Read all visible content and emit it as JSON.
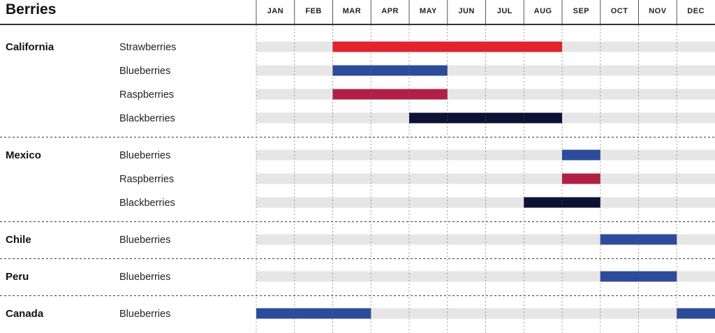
{
  "chart_data": {
    "type": "gantt",
    "title": "Berries",
    "months": [
      "JAN",
      "FEB",
      "MAR",
      "APR",
      "MAY",
      "JUN",
      "JUL",
      "AUG",
      "SEP",
      "OCT",
      "NOV",
      "DEC"
    ],
    "colors": {
      "Strawberries": "#e3232b",
      "Blueberries": "#2d4b9b",
      "Raspberries": "#b21f45",
      "Blackberries": "#0b1233",
      "track": "#e6e6e6"
    },
    "groups": [
      {
        "region": "California",
        "rows": [
          {
            "berry": "Strawberries",
            "seasons": [
              {
                "start_month": 3,
                "end_month": 8
              }
            ]
          },
          {
            "berry": "Blueberries",
            "seasons": [
              {
                "start_month": 3,
                "end_month": 5
              }
            ]
          },
          {
            "berry": "Raspberries",
            "seasons": [
              {
                "start_month": 3,
                "end_month": 5
              }
            ]
          },
          {
            "berry": "Blackberries",
            "seasons": [
              {
                "start_month": 5,
                "end_month": 8
              }
            ]
          }
        ]
      },
      {
        "region": "Mexico",
        "rows": [
          {
            "berry": "Blueberries",
            "seasons": [
              {
                "start_month": 9,
                "end_month": 9
              }
            ]
          },
          {
            "berry": "Raspberries",
            "seasons": [
              {
                "start_month": 9,
                "end_month": 9
              }
            ]
          },
          {
            "berry": "Blackberries",
            "seasons": [
              {
                "start_month": 8,
                "end_month": 9
              }
            ]
          }
        ]
      },
      {
        "region": "Chile",
        "rows": [
          {
            "berry": "Blueberries",
            "seasons": [
              {
                "start_month": 10,
                "end_month": 11
              }
            ]
          }
        ]
      },
      {
        "region": "Peru",
        "rows": [
          {
            "berry": "Blueberries",
            "seasons": [
              {
                "start_month": 10,
                "end_month": 11
              }
            ]
          }
        ]
      },
      {
        "region": "Canada",
        "rows": [
          {
            "berry": "Blueberries",
            "seasons": [
              {
                "start_month": 1,
                "end_month": 3
              },
              {
                "start_month": 12,
                "end_month": 12
              }
            ]
          }
        ]
      }
    ]
  }
}
